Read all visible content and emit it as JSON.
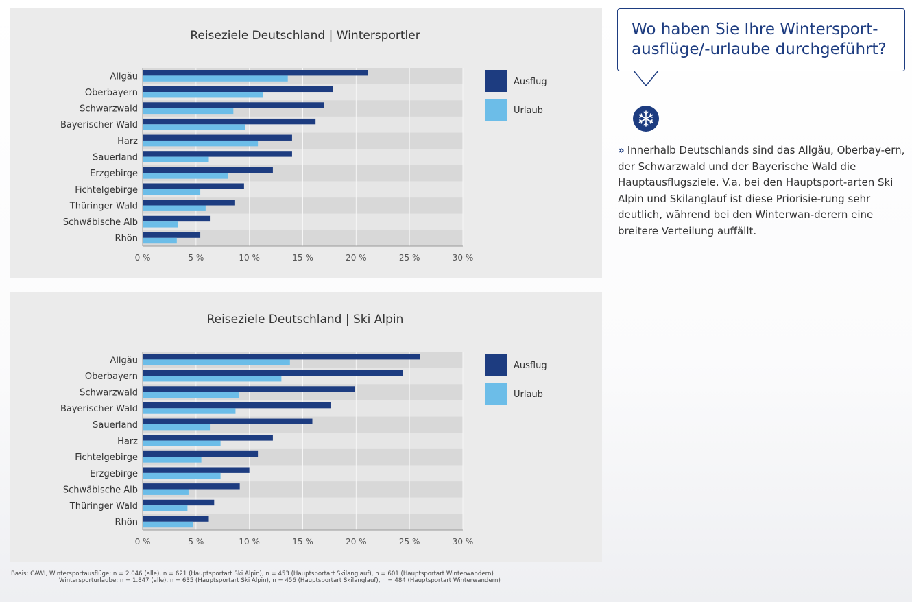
{
  "colors": {
    "ausflug": "#1d3c80",
    "urlaub": "#6cbde8",
    "accent": "#1d3c80"
  },
  "callout": {
    "text": "Wo haben Sie Ihre Wintersport-ausflüge/-urlaube durchgeführt?"
  },
  "icon": "snowflake-icon",
  "body": {
    "marker": "»",
    "text": "Innerhalb Deutschlands sind das Allgäu, Oberbay-ern, der Schwarzwald und der Bayerische Wald die Hauptausflugsziele. V.a. bei den Hauptsport-arten Ski Alpin und Skilanglauf ist diese Priorisie-rung sehr deutlich, während bei den Winterwan-derern eine breitere Verteilung auffällt."
  },
  "footnote": {
    "line1": "Basis: CAWI, Wintersportausflüge: n = 2.046 (alle), n = 621 (Hauptsportart Ski Alpin), n = 453 (Hauptsportart Skilanglauf), n = 601 (Hauptsportart Winterwandern)",
    "line2": "Wintersporturlaube: n = 1.847 (alle), n = 635 (Hauptsportart Ski Alpin), n = 456 (Hauptsportart Skilanglauf), n = 484 (Hauptsportart Winterwandern)"
  },
  "chart_data": [
    {
      "type": "bar",
      "orientation": "horizontal",
      "title": "Reiseziele Deutschland | Wintersportler",
      "categories": [
        "Allgäu",
        "Oberbayern",
        "Schwarzwald",
        "Bayerischer Wald",
        "Harz",
        "Sauerland",
        "Erzgebirge",
        "Fichtelgebirge",
        "Thüringer Wald",
        "Schwäbische Alb",
        "Rhön"
      ],
      "series": [
        {
          "name": "Ausflug",
          "values": [
            21.1,
            17.8,
            17.0,
            16.2,
            14.0,
            14.0,
            12.2,
            9.5,
            8.6,
            6.3,
            5.4
          ]
        },
        {
          "name": "Urlaub",
          "values": [
            13.6,
            11.3,
            8.5,
            9.6,
            10.8,
            6.2,
            8.0,
            5.4,
            5.9,
            3.3,
            3.2
          ]
        }
      ],
      "xlim": [
        0,
        30
      ],
      "ticks": [
        "0 %",
        "5 %",
        "10 %",
        "15 %",
        "20 %",
        "25 %",
        "30 %"
      ],
      "legend_position": "right",
      "grid": true
    },
    {
      "type": "bar",
      "orientation": "horizontal",
      "title": "Reiseziele Deutschland | Ski Alpin",
      "categories": [
        "Allgäu",
        "Oberbayern",
        "Schwarzwald",
        "Bayerischer Wald",
        "Sauerland",
        "Harz",
        "Fichtelgebirge",
        "Erzgebirge",
        "Schwäbische Alb",
        "Thüringer Wald",
        "Rhön"
      ],
      "series": [
        {
          "name": "Ausflug",
          "values": [
            26.0,
            24.4,
            19.9,
            17.6,
            15.9,
            12.2,
            10.8,
            10.0,
            9.1,
            6.7,
            6.2
          ]
        },
        {
          "name": "Urlaub",
          "values": [
            13.8,
            13.0,
            9.0,
            8.7,
            6.3,
            7.3,
            5.5,
            7.3,
            4.3,
            4.2,
            4.7
          ]
        }
      ],
      "xlim": [
        0,
        30
      ],
      "ticks": [
        "0 %",
        "5 %",
        "10 %",
        "15 %",
        "20 %",
        "25 %",
        "30 %"
      ],
      "legend_position": "right",
      "grid": true
    }
  ]
}
